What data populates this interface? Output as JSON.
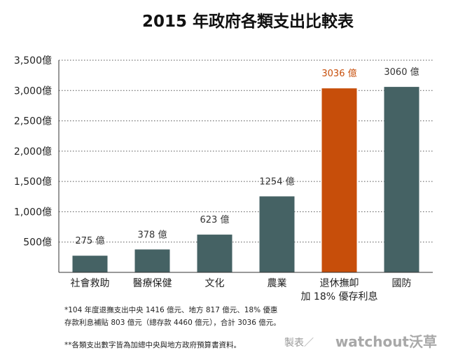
{
  "chart_data": {
    "type": "bar",
    "title": "2015 年政府各類支出比較表",
    "categories": [
      [
        "社會救助"
      ],
      [
        "醫療保健"
      ],
      [
        "文化"
      ],
      [
        "農業"
      ],
      [
        "退休撫卹",
        "加 18% 優存利息"
      ],
      [
        "國防"
      ]
    ],
    "values": [
      275,
      378,
      623,
      1254,
      3036,
      3060
    ],
    "data_labels": [
      "275 億",
      "378 億",
      "623 億",
      "1254 億",
      "3036 億",
      "3060 億"
    ],
    "ylim": [
      0,
      3500
    ],
    "yticks": [
      500,
      1000,
      1500,
      2000,
      2500,
      3000,
      3500
    ],
    "ytick_labels": [
      "500億",
      "1,000億",
      "1,500億",
      "2,000億",
      "2,500億",
      "3,000億",
      "3,500億"
    ],
    "grid": true,
    "colors": {
      "bar": "#456264",
      "highlight_bar": "#c74e0a",
      "highlight_label": "#c74e0a",
      "highlight_index": 4,
      "grid": "#555555",
      "axis": "#333333"
    }
  },
  "notes": [
    "*104 年度退撫支出中央 1416 億元、地方 817 億元、18% 優惠",
    "存款利息補貼 803 億元（總存款 4460 億元），合計 3036 億元。",
    "**各類支出數字皆為加總中央與地方政府預算書資料。"
  ],
  "credit": {
    "prefix": "製表／",
    "brand": "watchout沃草"
  }
}
